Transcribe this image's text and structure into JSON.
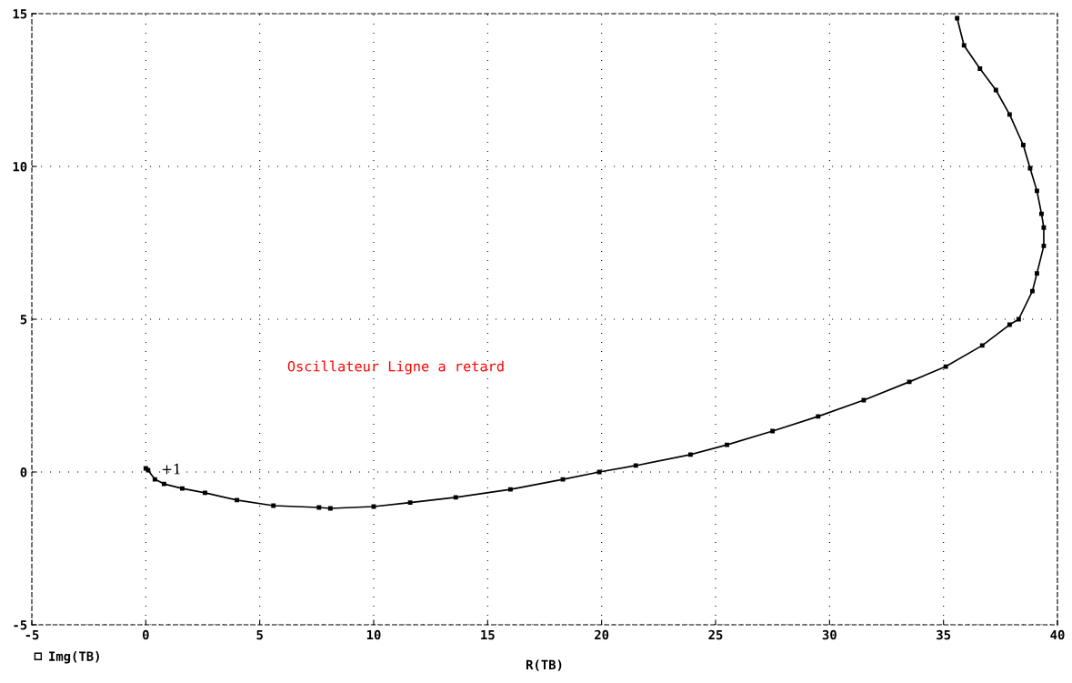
{
  "chart_data": {
    "type": "line",
    "xlabel": "R(TB)",
    "series": [
      {
        "name": "Img(TB)",
        "color": "#000000",
        "x": [
          0,
          0.1,
          0.4,
          0.8,
          1.6,
          2.6,
          4,
          5.6,
          7.6,
          8.1,
          10,
          11.6,
          13.6,
          16,
          18.3,
          19.9,
          21.5,
          23.9,
          25.5,
          27.5,
          29.5,
          31.5,
          33.5,
          35.1,
          36.7,
          37.9,
          38.3,
          38.9,
          39.1,
          39.4,
          39.4,
          39.3,
          39.1,
          38.8,
          38.5,
          37.9,
          37.3,
          36.6,
          35.9,
          35.6
        ],
        "values": [
          0.12,
          0.06,
          -0.24,
          -0.39,
          -0.54,
          -0.68,
          -0.92,
          -1.1,
          -1.16,
          -1.19,
          -1.13,
          -1.0,
          -0.83,
          -0.57,
          -0.24,
          0,
          0.21,
          0.57,
          0.89,
          1.34,
          1.82,
          2.35,
          2.95,
          3.45,
          4.14,
          4.82,
          5.0,
          5.92,
          6.5,
          7.4,
          8.0,
          8.45,
          9.2,
          9.94,
          10.7,
          11.7,
          12.5,
          13.2,
          13.96,
          14.85
        ]
      }
    ],
    "xlim": [
      -5,
      40
    ],
    "ylim": [
      -5,
      15
    ],
    "xticks": [
      -5,
      0,
      5,
      10,
      15,
      20,
      25,
      30,
      35,
      40
    ],
    "yticks": [
      -5,
      0,
      5,
      10,
      15
    ],
    "grid": true,
    "legend": "bottom left",
    "marker": "square",
    "line_style": "solid",
    "annotations": [
      "Oscillateur Ligne a retard",
      "+1"
    ]
  }
}
